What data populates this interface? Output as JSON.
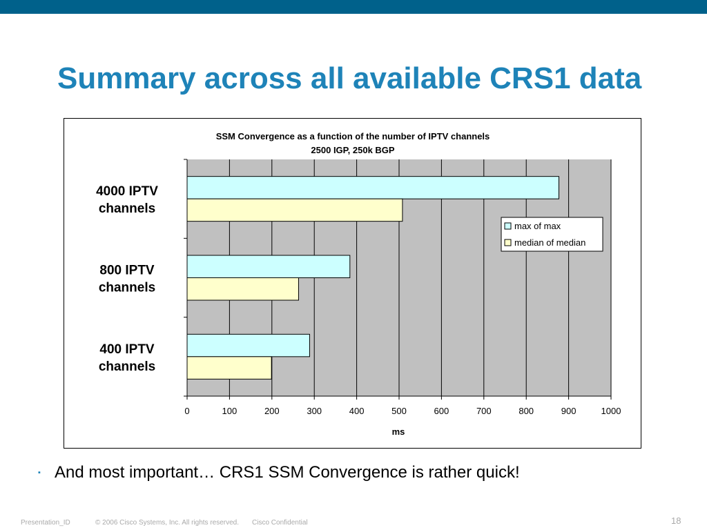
{
  "slide": {
    "title": "Summary across all available CRS1 data",
    "bullet_marker": "▪",
    "bullet_text": "And most important… CRS1 SSM Convergence is rather quick!",
    "footer": {
      "presentation_id": "Presentation_ID",
      "copyright": "© 2006 Cisco Systems, Inc. All rights reserved.",
      "confidential": "Cisco Confidential",
      "page_number": "18"
    }
  },
  "colors": {
    "top_bar": "#00618b",
    "title": "#1e83b8",
    "plot_background": "#c0c0c0",
    "series_max": "#ccffff",
    "series_median": "#ffffcc"
  },
  "chart_data": {
    "type": "bar",
    "orientation": "horizontal",
    "title": "SSM Convergence as a function of the number of IPTV channels",
    "subtitle": "2500 IGP, 250k BGP",
    "xlabel": "ms",
    "ylabel": "",
    "categories": [
      "4000 IPTV channels",
      "800 IPTV channels",
      "400 IPTV channels"
    ],
    "series": [
      {
        "name": "max of max",
        "color": "#ccffff",
        "values": [
          877,
          384,
          289
        ]
      },
      {
        "name": "median of median",
        "color": "#ffffcc",
        "values": [
          508,
          263,
          199
        ]
      }
    ],
    "xlim": [
      0,
      1000
    ],
    "xticks": [
      0,
      100,
      200,
      300,
      400,
      500,
      600,
      700,
      800,
      900,
      1000
    ],
    "grid": true,
    "legend_position": "right"
  }
}
